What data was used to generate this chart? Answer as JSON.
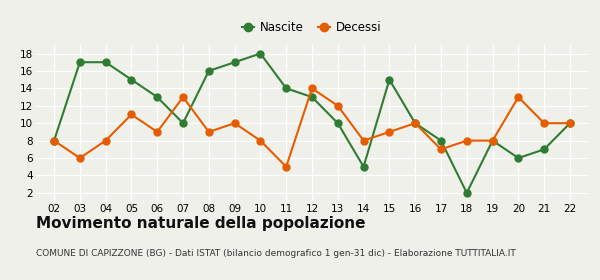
{
  "years": [
    2,
    3,
    4,
    5,
    6,
    7,
    8,
    9,
    10,
    11,
    12,
    13,
    14,
    15,
    16,
    17,
    18,
    19,
    20,
    21,
    22
  ],
  "nascite": [
    8,
    17,
    17,
    15,
    13,
    10,
    16,
    17,
    18,
    14,
    13,
    10,
    5,
    15,
    10,
    8,
    2,
    8,
    6,
    7,
    10
  ],
  "decessi": [
    8,
    6,
    8,
    11,
    9,
    13,
    9,
    10,
    8,
    5,
    14,
    12,
    8,
    9,
    10,
    7,
    8,
    8,
    13,
    10,
    10
  ],
  "nascite_color": "#2e7d32",
  "decessi_color": "#e65c00",
  "bg_color": "#f0f0eb",
  "grid_color": "#ffffff",
  "ylim": [
    1,
    19
  ],
  "yticks": [
    2,
    4,
    6,
    8,
    10,
    12,
    14,
    16,
    18
  ],
  "title": "Movimento naturale della popolazione",
  "subtitle": "COMUNE DI CAPIZZONE (BG) - Dati ISTAT (bilancio demografico 1 gen-31 dic) - Elaborazione TUTTITALIA.IT",
  "legend_nascite": "Nascite",
  "legend_decessi": "Decessi",
  "marker_size": 5,
  "line_width": 1.5,
  "title_fontsize": 11,
  "subtitle_fontsize": 6.5,
  "tick_fontsize": 7.5
}
